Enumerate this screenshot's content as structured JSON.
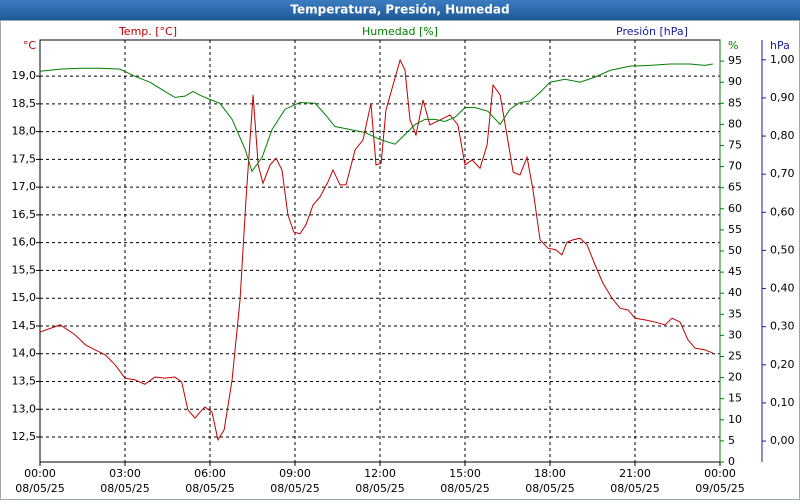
{
  "chart_data": {
    "type": "line",
    "title": "Temperatura, Presión, Humedad",
    "grid": true,
    "xlim": [
      0,
      24
    ],
    "xticks": [
      {
        "value": 0,
        "label": "00:00 08/05/25"
      },
      {
        "value": 3,
        "label": "03:00 08/05/25"
      },
      {
        "value": 6,
        "label": "06:00 08/05/25"
      },
      {
        "value": 9,
        "label": "09:00 08/05/25"
      },
      {
        "value": 12,
        "label": "12:00 08/05/25"
      },
      {
        "value": 15,
        "label": "15:00 08/05/25"
      },
      {
        "value": 18,
        "label": "18:00 08/05/25"
      },
      {
        "value": 21,
        "label": "21:00 08/05/25"
      },
      {
        "value": 24,
        "label": "00:00 09/05/25"
      }
    ],
    "y_unit": "°C",
    "ylim": [
      12.05,
      19.65
    ],
    "yticks": [
      {
        "value": 12.5,
        "label": "12,5"
      },
      {
        "value": 13,
        "label": "13,0"
      },
      {
        "value": 13.5,
        "label": "13,5"
      },
      {
        "value": 14,
        "label": "14,0"
      },
      {
        "value": 14.5,
        "label": "14,5"
      },
      {
        "value": 15,
        "label": "15,0"
      },
      {
        "value": 15.5,
        "label": "15,5"
      },
      {
        "value": 16,
        "label": "16,0"
      },
      {
        "value": 16.5,
        "label": "16,5"
      },
      {
        "value": 17,
        "label": "17,0"
      },
      {
        "value": 17.5,
        "label": "17,5"
      },
      {
        "value": 18,
        "label": "18,0"
      },
      {
        "value": 18.5,
        "label": "18,5"
      },
      {
        "value": 19,
        "label": "19,0"
      }
    ],
    "y2_unit": "%",
    "y2lim": [
      0,
      100
    ],
    "y2ticks": [
      0,
      5,
      10,
      15,
      20,
      25,
      30,
      35,
      40,
      45,
      50,
      55,
      60,
      65,
      70,
      75,
      80,
      85,
      90,
      95
    ],
    "y3_unit": "hPa",
    "y3lim": [
      -0.055,
      1.052
    ],
    "y3ticks": [
      {
        "value": 0,
        "label": "0,00"
      },
      {
        "value": 0.1,
        "label": "0,10"
      },
      {
        "value": 0.2,
        "label": "0,20"
      },
      {
        "value": 0.3,
        "label": "0,30"
      },
      {
        "value": 0.4,
        "label": "0,40"
      },
      {
        "value": 0.5,
        "label": "0,50"
      },
      {
        "value": 0.6,
        "label": "0,60"
      },
      {
        "value": 0.7,
        "label": "0,70"
      },
      {
        "value": 0.8,
        "label": "0,80"
      },
      {
        "value": 0.9,
        "label": "0,90"
      },
      {
        "value": 1,
        "label": "1,00"
      }
    ],
    "series": [
      {
        "name": "Temp. [°C]",
        "color": "#c00000",
        "axis": "y",
        "x": [
          0,
          0.71,
          1.24,
          1.6,
          1.94,
          2.3,
          2.65,
          3.0,
          3.35,
          3.7,
          4.06,
          4.4,
          4.76,
          5.0,
          5.22,
          5.47,
          5.65,
          5.82,
          6.07,
          6.28,
          6.5,
          6.78,
          7.06,
          7.27,
          7.52,
          7.7,
          7.87,
          8.12,
          8.33,
          8.54,
          8.75,
          8.96,
          9.18,
          9.39,
          9.64,
          9.88,
          10.16,
          10.34,
          10.59,
          10.8,
          11.12,
          11.4,
          11.68,
          11.86,
          12.04,
          12.21,
          12.46,
          12.71,
          12.88,
          13.06,
          13.27,
          13.52,
          13.76,
          14.12,
          14.47,
          14.75,
          15.0,
          15.25,
          15.53,
          15.78,
          15.99,
          16.24,
          16.45,
          16.7,
          16.94,
          17.19,
          17.4,
          17.65,
          17.93,
          18.21,
          18.42,
          18.6,
          18.81,
          19.06,
          19.31,
          19.59,
          19.87,
          20.19,
          20.47,
          20.75,
          21.0,
          21.35,
          21.71,
          22.06,
          22.31,
          22.59,
          22.87,
          23.12,
          23.47,
          23.75
        ],
        "values": [
          14.39,
          14.52,
          14.34,
          14.16,
          14.07,
          13.98,
          13.8,
          13.56,
          13.53,
          13.45,
          13.58,
          13.56,
          13.58,
          13.49,
          12.99,
          12.84,
          12.95,
          13.04,
          12.95,
          12.45,
          12.63,
          13.53,
          14.97,
          16.77,
          18.66,
          17.4,
          17.07,
          17.4,
          17.52,
          17.31,
          16.5,
          16.19,
          16.16,
          16.33,
          16.68,
          16.82,
          17.09,
          17.31,
          17.04,
          17.04,
          17.67,
          17.85,
          18.51,
          17.4,
          17.43,
          18.39,
          18.84,
          19.29,
          19.11,
          18.21,
          17.94,
          18.57,
          18.12,
          18.21,
          18.3,
          18.12,
          17.4,
          17.49,
          17.34,
          17.76,
          18.84,
          18.66,
          18.03,
          17.27,
          17.22,
          17.54,
          16.95,
          16.05,
          15.9,
          15.87,
          15.78,
          16.01,
          16.05,
          16.08,
          15.96,
          15.6,
          15.27,
          15.0,
          14.82,
          14.79,
          14.64,
          14.61,
          14.57,
          14.52,
          14.64,
          14.57,
          14.25,
          14.1,
          14.07,
          14.01
        ]
      },
      {
        "name": "Humedad [%]",
        "color": "#008000",
        "axis": "y2",
        "x": [
          0,
          0.71,
          1.41,
          2.12,
          2.82,
          3.35,
          3.88,
          4.41,
          4.76,
          5.12,
          5.4,
          5.65,
          6.0,
          6.35,
          6.78,
          7.24,
          7.48,
          7.84,
          8.19,
          8.65,
          9.18,
          9.71,
          10.06,
          10.41,
          10.94,
          11.47,
          12.0,
          12.53,
          12.88,
          13.24,
          13.59,
          13.94,
          14.29,
          14.65,
          15.0,
          15.35,
          15.81,
          16.24,
          16.59,
          16.94,
          17.29,
          17.65,
          18.0,
          18.53,
          19.06,
          19.59,
          20.12,
          20.82,
          21.53,
          22.24,
          22.94,
          23.47,
          23.75
        ],
        "values": [
          92.6,
          93.1,
          93.3,
          93.3,
          93.1,
          91.4,
          90.0,
          87.8,
          86.4,
          86.7,
          87.8,
          86.9,
          85.9,
          85.0,
          81.2,
          74.1,
          68.9,
          72.2,
          78.8,
          83.6,
          85.2,
          85.0,
          82.4,
          79.5,
          78.8,
          78.1,
          76.4,
          75.3,
          77.6,
          80.0,
          81.2,
          81.2,
          80.7,
          81.7,
          84.0,
          84.0,
          83.1,
          80.0,
          83.6,
          85.2,
          85.5,
          87.6,
          90.0,
          90.7,
          90.0,
          91.2,
          92.8,
          93.8,
          94.0,
          94.3,
          94.3,
          94.0,
          94.3
        ]
      },
      {
        "name": "Presión [hPa]",
        "color": "#1a1a9c",
        "axis": "y3",
        "x": [],
        "values": []
      }
    ]
  }
}
